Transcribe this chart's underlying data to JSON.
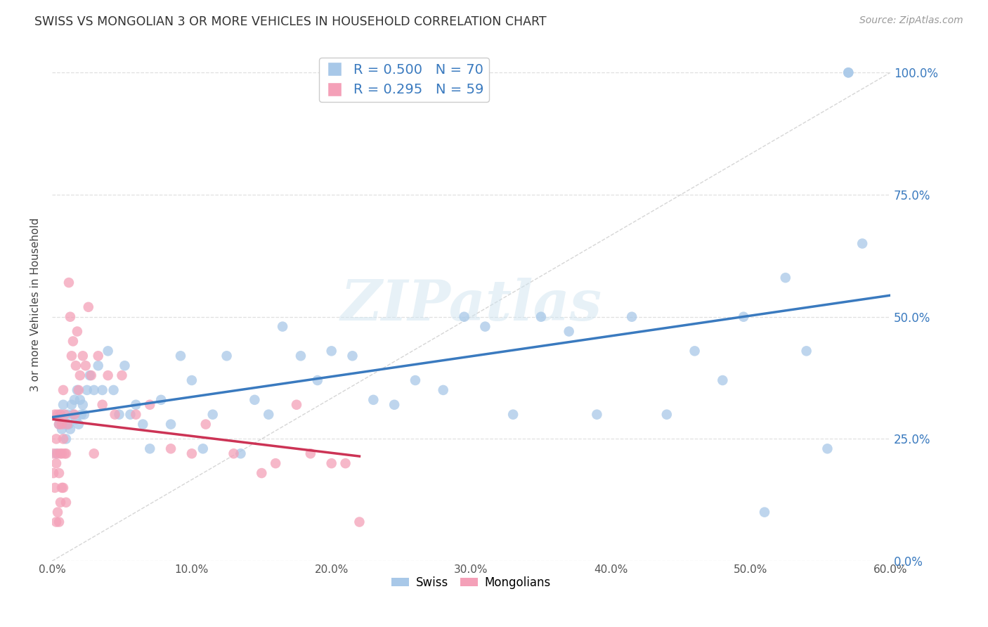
{
  "title": "SWISS VS MONGOLIAN 3 OR MORE VEHICLES IN HOUSEHOLD CORRELATION CHART",
  "source": "Source: ZipAtlas.com",
  "ylabel": "3 or more Vehicles in Household",
  "xmin": 0.0,
  "xmax": 0.6,
  "ymin": 0.0,
  "ymax": 1.05,
  "x_ticks": [
    0.0,
    0.1,
    0.2,
    0.3,
    0.4,
    0.5,
    0.6
  ],
  "x_tick_labels": [
    "0.0%",
    "10.0%",
    "20.0%",
    "30.0%",
    "40.0%",
    "50.0%",
    "60.0%"
  ],
  "y_ticks": [
    0.0,
    0.25,
    0.5,
    0.75,
    1.0
  ],
  "y_tick_labels": [
    "0.0%",
    "25.0%",
    "50.0%",
    "75.0%",
    "100.0%"
  ],
  "swiss_R": 0.5,
  "swiss_N": 70,
  "mongolian_R": 0.295,
  "mongolian_N": 59,
  "swiss_color": "#a8c8e8",
  "mongolian_color": "#f4a0b8",
  "swiss_line_color": "#3a7abf",
  "mongolian_line_color": "#cc3355",
  "swiss_x": [
    0.003,
    0.005,
    0.006,
    0.007,
    0.008,
    0.009,
    0.01,
    0.011,
    0.012,
    0.013,
    0.014,
    0.015,
    0.016,
    0.017,
    0.018,
    0.019,
    0.02,
    0.021,
    0.022,
    0.023,
    0.025,
    0.027,
    0.03,
    0.033,
    0.036,
    0.04,
    0.044,
    0.048,
    0.052,
    0.056,
    0.06,
    0.065,
    0.07,
    0.078,
    0.085,
    0.092,
    0.1,
    0.108,
    0.115,
    0.125,
    0.135,
    0.145,
    0.155,
    0.165,
    0.178,
    0.19,
    0.2,
    0.215,
    0.23,
    0.245,
    0.26,
    0.28,
    0.295,
    0.31,
    0.33,
    0.35,
    0.37,
    0.39,
    0.415,
    0.44,
    0.46,
    0.48,
    0.495,
    0.51,
    0.525,
    0.54,
    0.555,
    0.57,
    0.57,
    0.58
  ],
  "swiss_y": [
    0.22,
    0.28,
    0.3,
    0.27,
    0.32,
    0.28,
    0.25,
    0.3,
    0.28,
    0.27,
    0.32,
    0.3,
    0.33,
    0.29,
    0.35,
    0.28,
    0.33,
    0.3,
    0.32,
    0.3,
    0.35,
    0.38,
    0.35,
    0.4,
    0.35,
    0.43,
    0.35,
    0.3,
    0.4,
    0.3,
    0.32,
    0.28,
    0.23,
    0.33,
    0.28,
    0.42,
    0.37,
    0.23,
    0.3,
    0.42,
    0.22,
    0.33,
    0.3,
    0.48,
    0.42,
    0.37,
    0.43,
    0.42,
    0.33,
    0.32,
    0.37,
    0.35,
    0.5,
    0.48,
    0.3,
    0.5,
    0.47,
    0.3,
    0.5,
    0.3,
    0.43,
    0.37,
    0.5,
    0.1,
    0.58,
    0.43,
    0.23,
    1.0,
    1.0,
    0.65
  ],
  "mongolian_x": [
    0.001,
    0.001,
    0.002,
    0.002,
    0.003,
    0.003,
    0.003,
    0.004,
    0.004,
    0.004,
    0.005,
    0.005,
    0.005,
    0.006,
    0.006,
    0.006,
    0.007,
    0.007,
    0.007,
    0.008,
    0.008,
    0.008,
    0.009,
    0.009,
    0.01,
    0.01,
    0.011,
    0.012,
    0.013,
    0.014,
    0.015,
    0.016,
    0.017,
    0.018,
    0.019,
    0.02,
    0.022,
    0.024,
    0.026,
    0.028,
    0.03,
    0.033,
    0.036,
    0.04,
    0.045,
    0.05,
    0.06,
    0.07,
    0.085,
    0.1,
    0.11,
    0.13,
    0.15,
    0.16,
    0.175,
    0.185,
    0.2,
    0.21,
    0.22
  ],
  "mongolian_y": [
    0.22,
    0.18,
    0.3,
    0.15,
    0.25,
    0.2,
    0.08,
    0.3,
    0.22,
    0.1,
    0.28,
    0.18,
    0.08,
    0.3,
    0.22,
    0.12,
    0.28,
    0.22,
    0.15,
    0.35,
    0.25,
    0.15,
    0.3,
    0.22,
    0.22,
    0.12,
    0.28,
    0.57,
    0.5,
    0.42,
    0.45,
    0.3,
    0.4,
    0.47,
    0.35,
    0.38,
    0.42,
    0.4,
    0.52,
    0.38,
    0.22,
    0.42,
    0.32,
    0.38,
    0.3,
    0.38,
    0.3,
    0.32,
    0.23,
    0.22,
    0.28,
    0.22,
    0.18,
    0.2,
    0.32,
    0.22,
    0.2,
    0.2,
    0.08
  ],
  "watermark_text": "ZIPatlas",
  "background_color": "#ffffff",
  "grid_color": "#e0e0e0",
  "grid_style": "--"
}
